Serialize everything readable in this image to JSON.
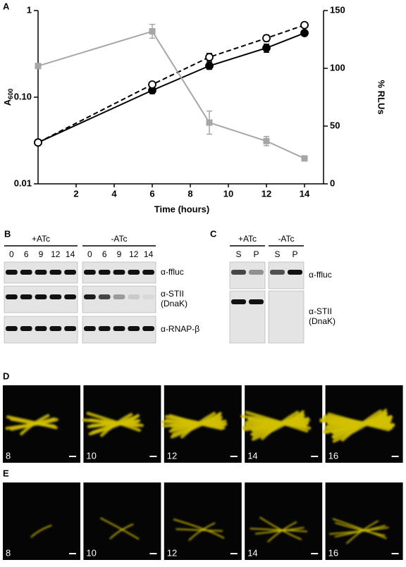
{
  "chart_data": {
    "type": "line",
    "panel_label": "A",
    "x_label": "Time (hours)",
    "y_label": "A",
    "y_label_sub": "600",
    "y2_label": "% RLUs",
    "x": [
      0,
      6,
      9,
      12,
      14
    ],
    "xlim": [
      0,
      15
    ],
    "xticks": [
      2,
      4,
      6,
      8,
      10,
      12,
      14
    ],
    "ylim": [
      0.01,
      1
    ],
    "log_y": true,
    "yticks": [
      0.01,
      {
        "value": 0.1,
        "label": "0.10"
      },
      1
    ],
    "y2lim": [
      0,
      150
    ],
    "y2ticks": [
      0,
      50,
      100,
      150
    ],
    "series": [
      {
        "color": "#000000",
        "dashed": false,
        "marker": "filled-circle",
        "values": [
          0.03,
          0.12,
          0.23,
          0.37,
          0.55
        ],
        "errors": [
          null,
          0.01,
          0.02,
          0.04,
          0.03
        ]
      },
      {
        "color": "#000000",
        "dashed": true,
        "marker": "open-circle",
        "values": [
          0.03,
          0.14,
          0.29,
          0.48,
          0.68
        ],
        "errors": [
          null,
          0.01,
          0.03,
          0.04,
          0.04
        ]
      },
      {
        "color": "#a6a6a6",
        "dashed": false,
        "marker": "square",
        "axis": "y2",
        "values": [
          102,
          132,
          53,
          37,
          22
        ],
        "errors": [
          null,
          6,
          10,
          4,
          null
        ]
      }
    ]
  },
  "panel_b": {
    "label": "B",
    "groups": [
      {
        "treatment": "+ATc",
        "lanes": [
          "0",
          "6",
          "9",
          "12",
          "14"
        ]
      },
      {
        "treatment": "-ATc",
        "lanes": [
          "0",
          "6",
          "9",
          "12",
          "14"
        ]
      }
    ],
    "antibodies": [
      [
        "α-ffluc"
      ],
      [
        "α-STII",
        "(DnaK)"
      ],
      [
        "α-RNAP-β"
      ]
    ]
  },
  "panel_c": {
    "label": "C",
    "groups": [
      {
        "treatment": "+ATc",
        "lanes": [
          "S",
          "P"
        ]
      },
      {
        "treatment": "-ATc",
        "lanes": [
          "S",
          "P"
        ]
      }
    ],
    "antibodies": [
      [
        "α-ffluc"
      ],
      [
        "α-STII",
        "(DnaK)"
      ]
    ]
  },
  "panel_d": {
    "label": "D",
    "frames": [
      "8",
      "10",
      "12",
      "14",
      "16"
    ]
  },
  "panel_e": {
    "label": "E",
    "frames": [
      "8",
      "10",
      "12",
      "14",
      "16"
    ]
  }
}
